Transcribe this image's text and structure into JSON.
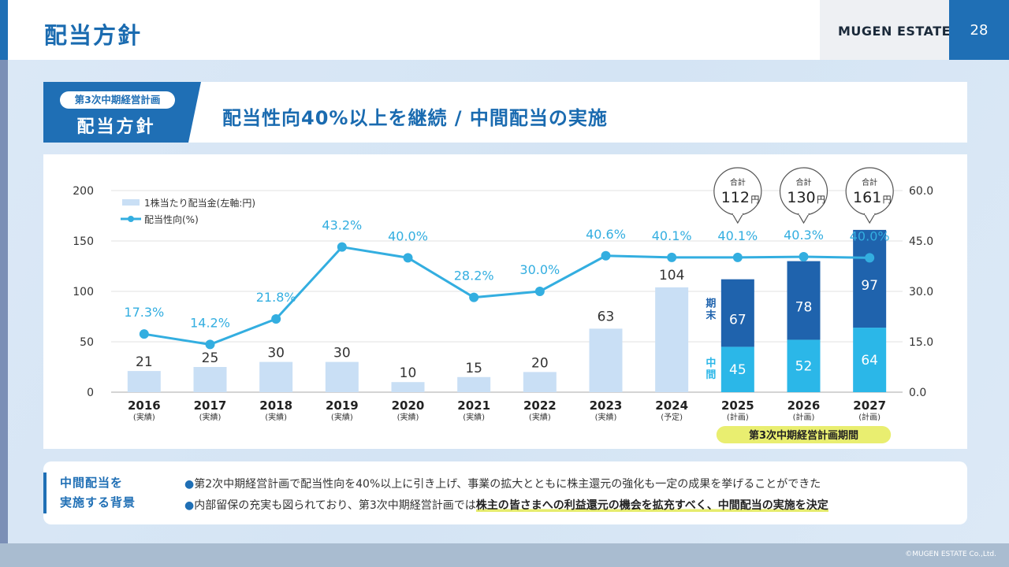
{
  "header": {
    "title": "配当方針",
    "brand": "MUGEN ESTATE",
    "page_number": "28"
  },
  "section": {
    "tag_pill": "第3次中期経営計画",
    "tag_title": "配当方針",
    "heading": "配当性向40%以上を継続 / 中間配当の実施"
  },
  "chart_data": {
    "type": "bar",
    "categories": [
      "2016",
      "2017",
      "2018",
      "2019",
      "2020",
      "2021",
      "2022",
      "2023",
      "2024",
      "2025",
      "2026",
      "2027"
    ],
    "category_notes": [
      "(実績)",
      "(実績)",
      "(実績)",
      "(実績)",
      "(実績)",
      "(実績)",
      "(実績)",
      "(実績)",
      "(予定)",
      "(計画)",
      "(計画)",
      "(計画)"
    ],
    "series": [
      {
        "name": "1株当たり配当金(左軸:円)",
        "values": [
          21,
          25,
          30,
          30,
          10,
          15,
          20,
          63,
          104,
          null,
          null,
          null
        ]
      },
      {
        "name": "中間",
        "values": [
          null,
          null,
          null,
          null,
          null,
          null,
          null,
          null,
          null,
          45,
          52,
          64
        ]
      },
      {
        "name": "期末",
        "values": [
          null,
          null,
          null,
          null,
          null,
          null,
          null,
          null,
          null,
          67,
          78,
          97
        ]
      },
      {
        "name": "配当性向(%)",
        "type": "line",
        "axis": "right",
        "values": [
          17.3,
          14.2,
          21.8,
          43.2,
          40.0,
          28.2,
          30.0,
          40.6,
          40.1,
          40.1,
          40.3,
          40.0
        ],
        "labels": [
          "17.3%",
          "14.2%",
          "21.8%",
          "43.2%",
          "40.0%",
          "28.2%",
          "30.0%",
          "40.6%",
          "40.1%",
          "40.1%",
          "40.3%",
          "40.0%"
        ]
      }
    ],
    "totals": [
      {
        "label": "合計",
        "value": "112",
        "unit": "円"
      },
      {
        "label": "合計",
        "value": "130",
        "unit": "円"
      },
      {
        "label": "合計",
        "value": "161",
        "unit": "円"
      }
    ],
    "y_left": {
      "ticks": [
        "0",
        "50",
        "100",
        "150",
        "200"
      ],
      "ylim": [
        0,
        200
      ]
    },
    "y_right": {
      "ticks": [
        "0.0",
        "15.0",
        "30.0",
        "45.0",
        "60.0"
      ],
      "ylim": [
        0,
        60
      ]
    },
    "legend": [
      "1株当たり配当金(左軸:円)",
      "配当性向(%)"
    ],
    "stack_labels": {
      "top": "期末",
      "bottom": "中間"
    },
    "period_label": "第3次中期経営計画期間"
  },
  "background_note": {
    "label_line1": "中間配当を",
    "label_line2": "実施する背景",
    "bullet1": "第2次中期経営計画で配当性向を40%以上に引き上げ、事業の拡大とともに株主還元の強化も一定の成果を挙げることができた",
    "bullet2_plain": "内部留保の充実も図られており、第3次中期経営計画では",
    "bullet2_highlight": "株主の皆さまへの利益還元の機会を拡充すべく、中間配当の実施を決定",
    "bullet_mark": "●"
  },
  "footer": {
    "copyright": "©MUGEN ESTATE Co.,Ltd."
  },
  "colors": {
    "primary": "#1f6fb5",
    "dark_bar": "#1f63ad",
    "light_bar": "#c9dff5",
    "cyan": "#2bb7e8",
    "line": "#33aee0",
    "period": "#e9ee70"
  }
}
